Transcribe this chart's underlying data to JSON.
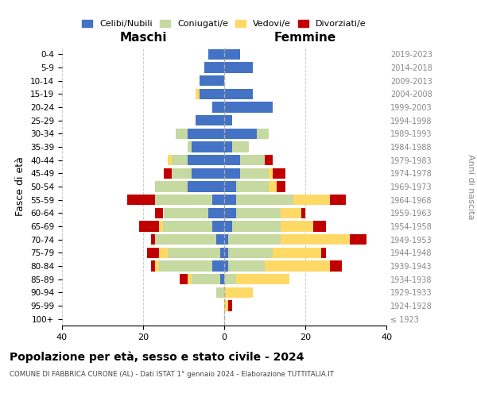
{
  "age_groups": [
    "100+",
    "95-99",
    "90-94",
    "85-89",
    "80-84",
    "75-79",
    "70-74",
    "65-69",
    "60-64",
    "55-59",
    "50-54",
    "45-49",
    "40-44",
    "35-39",
    "30-34",
    "25-29",
    "20-24",
    "15-19",
    "10-14",
    "5-9",
    "0-4"
  ],
  "birth_years": [
    "≤ 1923",
    "1924-1928",
    "1929-1933",
    "1934-1938",
    "1939-1943",
    "1944-1948",
    "1949-1953",
    "1954-1958",
    "1959-1963",
    "1964-1968",
    "1969-1973",
    "1974-1978",
    "1979-1983",
    "1984-1988",
    "1989-1993",
    "1994-1998",
    "1999-2003",
    "2004-2008",
    "2009-2013",
    "2014-2018",
    "2019-2023"
  ],
  "maschi": {
    "celibi": [
      0,
      0,
      0,
      1,
      3,
      1,
      2,
      3,
      4,
      3,
      9,
      8,
      9,
      8,
      9,
      7,
      3,
      6,
      6,
      5,
      4
    ],
    "coniugati": [
      0,
      0,
      2,
      7,
      13,
      13,
      15,
      12,
      11,
      14,
      8,
      5,
      4,
      1,
      3,
      0,
      0,
      0,
      0,
      0,
      0
    ],
    "vedovi": [
      0,
      0,
      0,
      1,
      1,
      2,
      0,
      1,
      0,
      0,
      0,
      0,
      1,
      0,
      0,
      0,
      0,
      1,
      0,
      0,
      0
    ],
    "divorziati": [
      0,
      0,
      0,
      2,
      1,
      3,
      1,
      5,
      2,
      7,
      0,
      2,
      0,
      0,
      0,
      0,
      0,
      0,
      0,
      0,
      0
    ]
  },
  "femmine": {
    "nubili": [
      0,
      0,
      0,
      0,
      1,
      1,
      1,
      2,
      3,
      3,
      3,
      4,
      4,
      2,
      8,
      2,
      12,
      7,
      0,
      7,
      4
    ],
    "coniugate": [
      0,
      0,
      0,
      3,
      9,
      11,
      13,
      12,
      11,
      14,
      8,
      7,
      6,
      4,
      3,
      0,
      0,
      0,
      0,
      0,
      0
    ],
    "vedove": [
      0,
      1,
      7,
      13,
      16,
      12,
      17,
      8,
      5,
      9,
      2,
      1,
      0,
      0,
      0,
      0,
      0,
      0,
      0,
      0,
      0
    ],
    "divorziate": [
      0,
      1,
      0,
      0,
      3,
      1,
      4,
      3,
      1,
      4,
      2,
      3,
      2,
      0,
      0,
      0,
      0,
      0,
      0,
      0,
      0
    ]
  },
  "colors": {
    "celibi": "#4472C4",
    "coniugati": "#c5d9a0",
    "vedovi": "#FFD966",
    "divorziati": "#C00000"
  },
  "title": "Popolazione per età, sesso e stato civile - 2024",
  "subtitle": "COMUNE DI FABBRICA CURONE (AL) - Dati ISTAT 1° gennaio 2024 - Elaborazione TUTTITALIA.IT",
  "xlabel_left": "Maschi",
  "xlabel_right": "Femmine",
  "ylabel_left": "Fasce di età",
  "ylabel_right": "Anni di nascita",
  "xlim": 40,
  "legend_labels": [
    "Celibi/Nubili",
    "Coniugati/e",
    "Vedovi/e",
    "Divorziati/e"
  ]
}
